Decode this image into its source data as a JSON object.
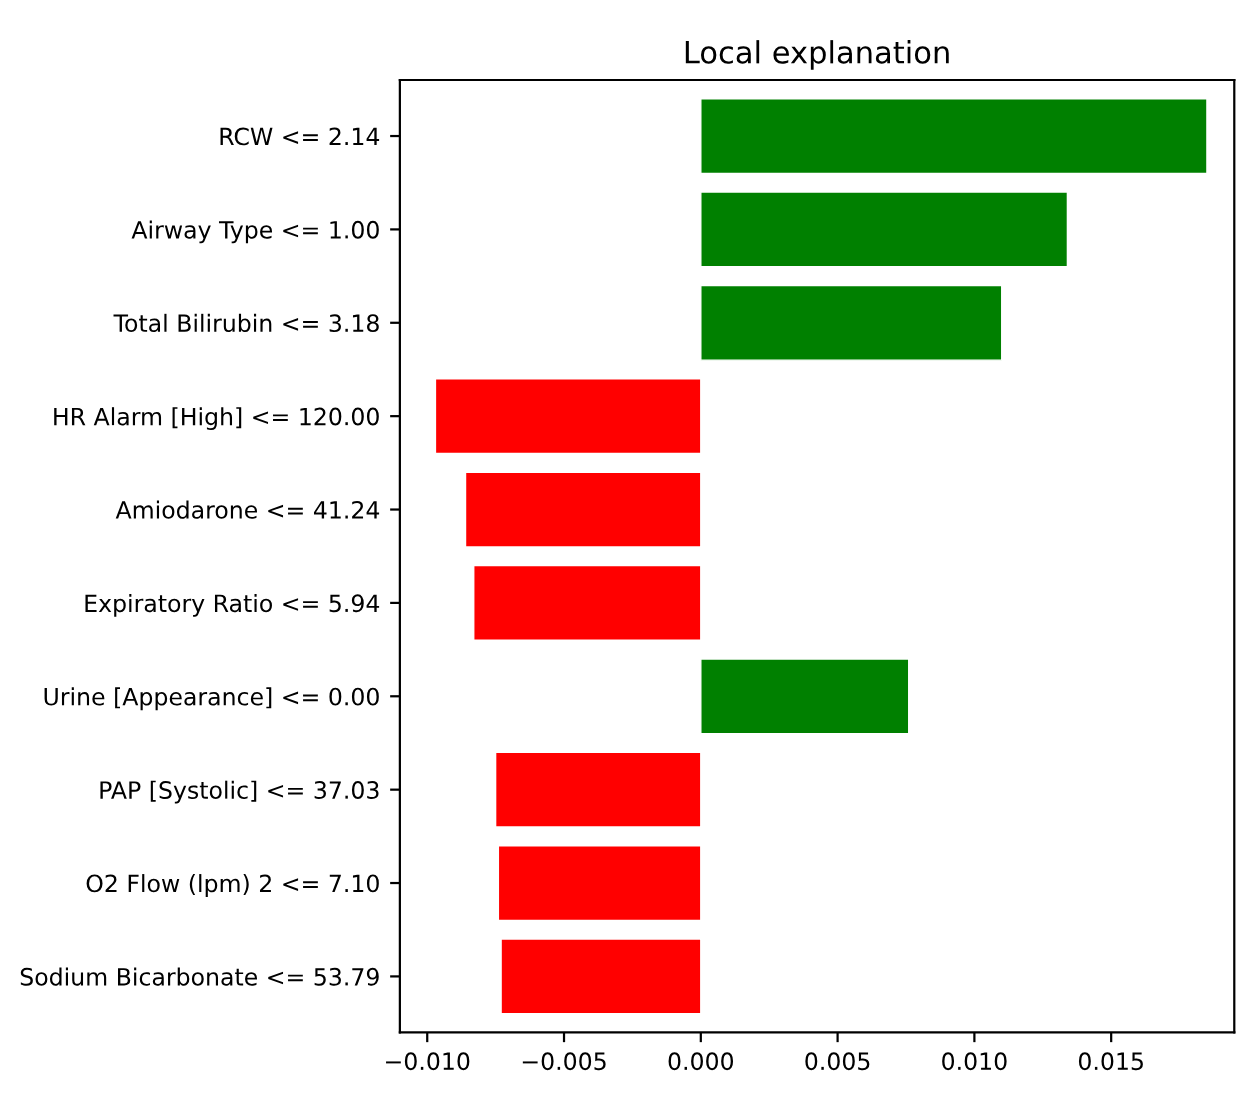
{
  "chart_data": {
    "type": "bar",
    "orientation": "horizontal",
    "title": "Local explanation",
    "categories": [
      "RCW <= 2.14",
      "Airway Type <= 1.00",
      "Total Bilirubin <= 3.18",
      "HR Alarm [High] <= 120.00",
      "Amiodarone <= 41.24",
      "Expiratory Ratio <= 5.94",
      "Urine [Appearance] <= 0.00",
      "PAP [Systolic] <= 37.03",
      "O2 Flow (lpm) 2 <= 7.10",
      "Sodium Bicarbonate <= 53.79"
    ],
    "values": [
      0.0185,
      0.0134,
      0.011,
      -0.0097,
      -0.0086,
      -0.0083,
      0.0076,
      -0.0075,
      -0.0074,
      -0.0073
    ],
    "colors": [
      "#008000",
      "#008000",
      "#008000",
      "#ff0000",
      "#ff0000",
      "#ff0000",
      "#008000",
      "#ff0000",
      "#ff0000",
      "#ff0000"
    ],
    "xlim": [
      -0.011,
      0.0195
    ],
    "xticks": [
      {
        "value": -0.01,
        "label": "−0.010"
      },
      {
        "value": -0.005,
        "label": "−0.005"
      },
      {
        "value": 0.0,
        "label": "0.000"
      },
      {
        "value": 0.005,
        "label": "0.005"
      },
      {
        "value": 0.01,
        "label": "0.010"
      },
      {
        "value": 0.015,
        "label": "0.015"
      }
    ],
    "grid": false,
    "legend": false
  }
}
